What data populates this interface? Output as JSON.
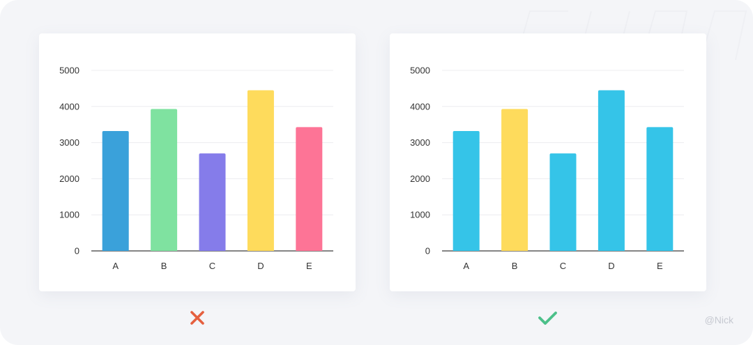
{
  "credit": "@Nick",
  "verdicts": {
    "left_icon": "cross-icon",
    "right_icon": "check-icon",
    "wrong_color": "#e5603f",
    "right_color": "#4cc08a"
  },
  "chart_data": [
    {
      "type": "bar",
      "title": "",
      "xlabel": "",
      "ylabel": "",
      "categories": [
        "A",
        "B",
        "C",
        "D",
        "E"
      ],
      "values": [
        3320,
        3930,
        2700,
        4450,
        3430
      ],
      "ylim": [
        0,
        5000
      ],
      "yticks": [
        0,
        1000,
        2000,
        3000,
        4000,
        5000
      ],
      "grid": true,
      "legend": "none",
      "bar_colors": [
        "#3aa1da",
        "#7fe2a0",
        "#857cea",
        "#fedb5c",
        "#fd7496"
      ]
    },
    {
      "type": "bar",
      "title": "",
      "xlabel": "",
      "ylabel": "",
      "categories": [
        "A",
        "B",
        "C",
        "D",
        "E"
      ],
      "values": [
        3320,
        3930,
        2700,
        4450,
        3430
      ],
      "ylim": [
        0,
        5000
      ],
      "yticks": [
        0,
        1000,
        2000,
        3000,
        4000,
        5000
      ],
      "grid": true,
      "legend": "none",
      "bar_colors": [
        "#35c4e8",
        "#fedb5c",
        "#35c4e8",
        "#35c4e8",
        "#35c4e8"
      ]
    }
  ]
}
